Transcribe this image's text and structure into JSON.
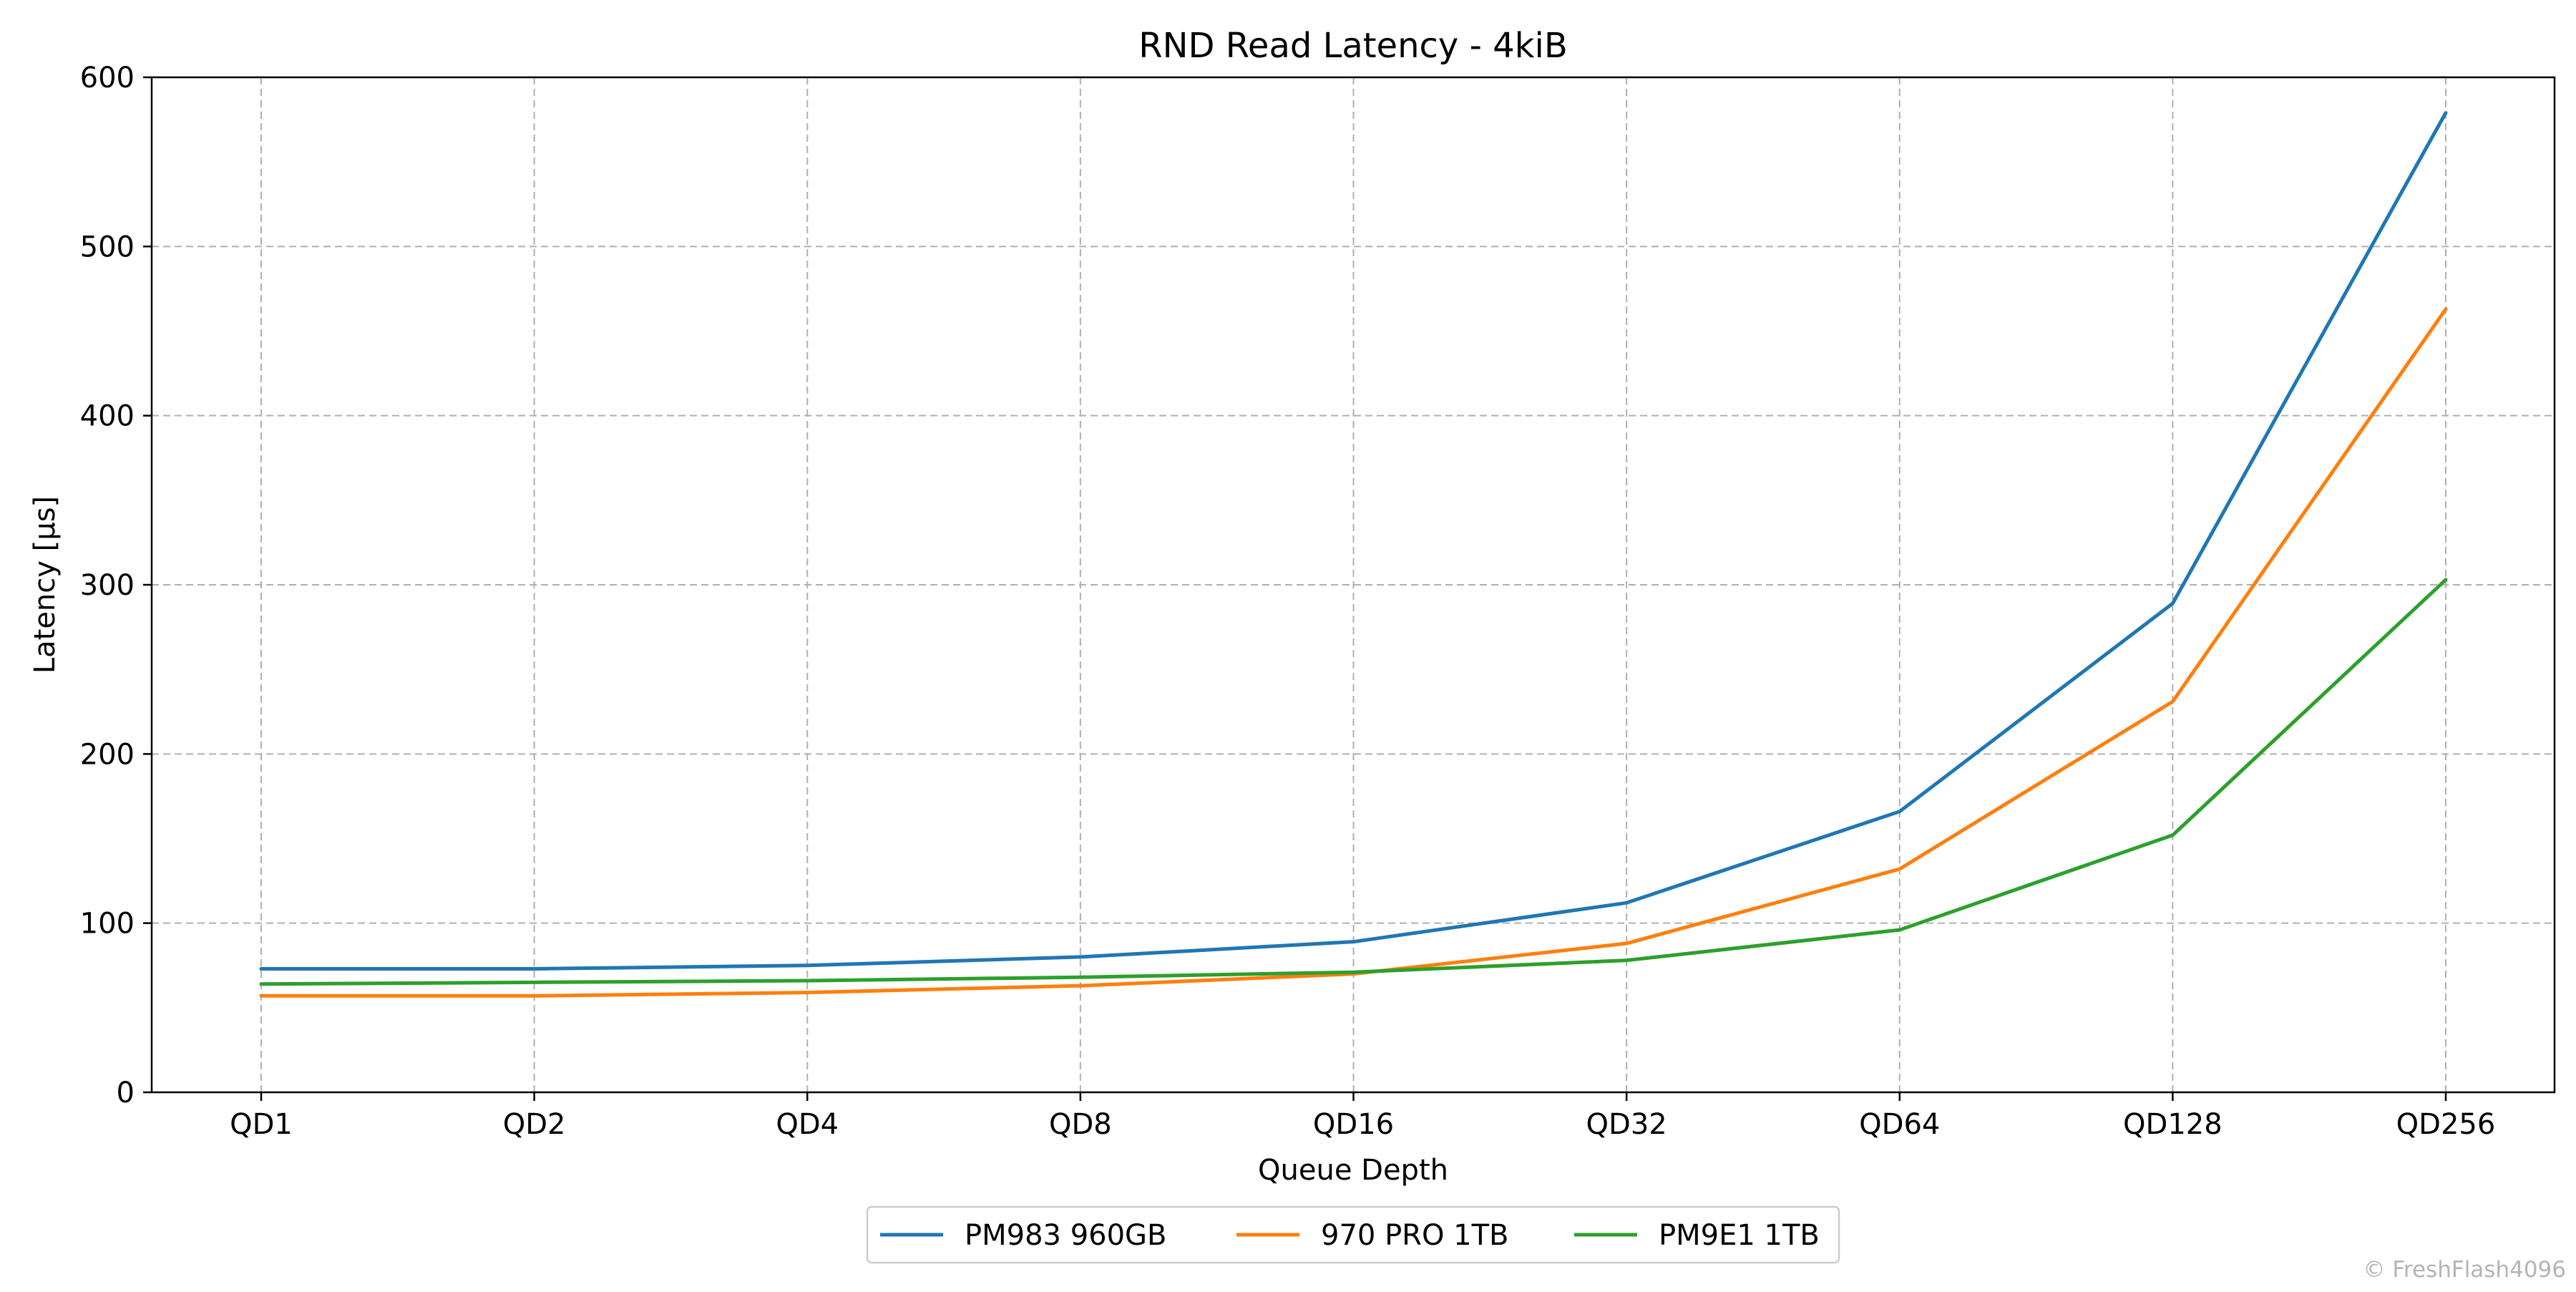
{
  "chart_data": {
    "type": "line",
    "title": "RND Read Latency - 4kiB",
    "xlabel": "Queue Depth",
    "ylabel": "Latency [µs]",
    "categories": [
      "QD1",
      "QD2",
      "QD4",
      "QD8",
      "QD16",
      "QD32",
      "QD64",
      "QD128",
      "QD256"
    ],
    "ylim": [
      0,
      600
    ],
    "yticks": [
      0,
      100,
      200,
      300,
      400,
      500,
      600
    ],
    "grid": true,
    "legend_position": "bottom-center",
    "series": [
      {
        "name": "PM983 960GB",
        "color": "#1f77b4",
        "values": [
          73,
          73,
          75,
          80,
          89,
          112,
          166,
          289,
          579
        ]
      },
      {
        "name": "970 PRO 1TB",
        "color": "#ff7f0e",
        "values": [
          57,
          57,
          59,
          63,
          70,
          88,
          132,
          231,
          463
        ]
      },
      {
        "name": "PM9E1 1TB",
        "color": "#2ca02c",
        "values": [
          64,
          65,
          66,
          68,
          71,
          78,
          96,
          152,
          303
        ]
      }
    ]
  },
  "watermark": "© FreshFlash4096"
}
